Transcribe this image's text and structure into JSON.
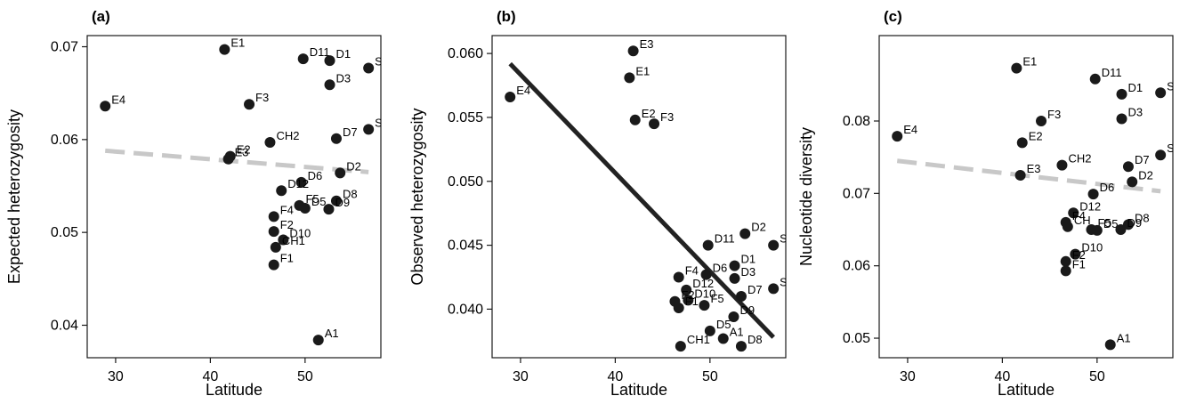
{
  "chart_data": [
    {
      "type": "scatter",
      "panel": "(a)",
      "xlabel": "Latitude",
      "ylabel": "Expected heterozygosity",
      "xlim": [
        27,
        58
      ],
      "ylim": [
        0.0365,
        0.0712
      ],
      "xticks": [
        30,
        40,
        50
      ],
      "yticks": [
        0.04,
        0.05,
        0.06,
        0.07
      ],
      "tick_format": {
        "x": 0,
        "y": 2
      },
      "points": [
        {
          "label": "E1",
          "x": 41.5,
          "y": 0.0697
        },
        {
          "label": "D11",
          "x": 49.8,
          "y": 0.0687
        },
        {
          "label": "D1",
          "x": 52.6,
          "y": 0.0685
        },
        {
          "label": "S",
          "x": 56.7,
          "y": 0.0677
        },
        {
          "label": "D3",
          "x": 52.6,
          "y": 0.0659
        },
        {
          "label": "F3",
          "x": 44.1,
          "y": 0.0638
        },
        {
          "label": "E4",
          "x": 28.9,
          "y": 0.0636
        },
        {
          "label": "D7",
          "x": 53.3,
          "y": 0.0601
        },
        {
          "label": "S",
          "x": 56.7,
          "y": 0.0611
        },
        {
          "label": "CH2",
          "x": 46.3,
          "y": 0.0597
        },
        {
          "label": "E2",
          "x": 42.1,
          "y": 0.0582
        },
        {
          "label": "E3",
          "x": 41.9,
          "y": 0.0579
        },
        {
          "label": "D2",
          "x": 53.7,
          "y": 0.0564
        },
        {
          "label": "D6",
          "x": 49.6,
          "y": 0.0554
        },
        {
          "label": "D12",
          "x": 47.5,
          "y": 0.0545
        },
        {
          "label": "F5",
          "x": 49.4,
          "y": 0.0529
        },
        {
          "label": "D5",
          "x": 50.0,
          "y": 0.0526
        },
        {
          "label": "D8",
          "x": 53.3,
          "y": 0.0534
        },
        {
          "label": "D9",
          "x": 52.5,
          "y": 0.0525
        },
        {
          "label": "F4",
          "x": 46.7,
          "y": 0.0517
        },
        {
          "label": "F2",
          "x": 46.7,
          "y": 0.0501
        },
        {
          "label": "D10",
          "x": 47.7,
          "y": 0.0492
        },
        {
          "label": "CH1",
          "x": 46.9,
          "y": 0.0484
        },
        {
          "label": "F1",
          "x": 46.7,
          "y": 0.0465
        },
        {
          "label": "A1",
          "x": 51.4,
          "y": 0.0384
        }
      ],
      "trend": {
        "style": "dashed",
        "color": "#c8c8c8",
        "x": [
          28.9,
          56.7
        ],
        "y": [
          0.0588,
          0.0565
        ]
      }
    },
    {
      "type": "scatter",
      "panel": "(b)",
      "xlabel": "Latitude",
      "ylabel": "Observed heterozygosity",
      "xlim": [
        27,
        58
      ],
      "ylim": [
        0.0362,
        0.0614
      ],
      "xticks": [
        30,
        40,
        50
      ],
      "yticks": [
        0.04,
        0.045,
        0.05,
        0.055,
        0.06
      ],
      "tick_format": {
        "x": 0,
        "y": 3
      },
      "points": [
        {
          "label": "E3",
          "x": 41.9,
          "y": 0.0602
        },
        {
          "label": "E1",
          "x": 41.5,
          "y": 0.0581
        },
        {
          "label": "E4",
          "x": 28.9,
          "y": 0.0566
        },
        {
          "label": "E2",
          "x": 42.1,
          "y": 0.0548
        },
        {
          "label": "F3",
          "x": 44.1,
          "y": 0.0545
        },
        {
          "label": "D11",
          "x": 49.8,
          "y": 0.045
        },
        {
          "label": "D2",
          "x": 53.7,
          "y": 0.0459
        },
        {
          "label": "S",
          "x": 56.7,
          "y": 0.045
        },
        {
          "label": "D1",
          "x": 52.6,
          "y": 0.0434
        },
        {
          "label": "D6",
          "x": 49.6,
          "y": 0.0427
        },
        {
          "label": "D3",
          "x": 52.6,
          "y": 0.0424
        },
        {
          "label": "F4",
          "x": 46.7,
          "y": 0.0425
        },
        {
          "label": "S",
          "x": 56.7,
          "y": 0.0416
        },
        {
          "label": "D12",
          "x": 47.5,
          "y": 0.0415
        },
        {
          "label": "D7",
          "x": 53.3,
          "y": 0.041
        },
        {
          "label": "D10",
          "x": 47.7,
          "y": 0.0407
        },
        {
          "label": "F2",
          "x": 46.3,
          "y": 0.0406
        },
        {
          "label": "F1",
          "x": 46.7,
          "y": 0.0401
        },
        {
          "label": "F5",
          "x": 49.4,
          "y": 0.0403
        },
        {
          "label": "D9",
          "x": 52.5,
          "y": 0.0394
        },
        {
          "label": "D5",
          "x": 50.0,
          "y": 0.0383
        },
        {
          "label": "A1",
          "x": 51.4,
          "y": 0.0377
        },
        {
          "label": "CH1",
          "x": 46.9,
          "y": 0.0371
        },
        {
          "label": "D8",
          "x": 53.3,
          "y": 0.0371
        }
      ],
      "trend": {
        "style": "solid",
        "color": "#222222",
        "x": [
          28.9,
          56.7
        ],
        "y": [
          0.0592,
          0.0378
        ]
      }
    },
    {
      "type": "scatter",
      "panel": "(c)",
      "xlabel": "Latitude",
      "ylabel": "Nucleotide diversity",
      "xlim": [
        27,
        58
      ],
      "ylim": [
        0.0473,
        0.0918
      ],
      "xticks": [
        30,
        40,
        50
      ],
      "yticks": [
        0.05,
        0.06,
        0.07,
        0.08
      ],
      "tick_format": {
        "x": 0,
        "y": 2
      },
      "points": [
        {
          "label": "E1",
          "x": 41.5,
          "y": 0.0873
        },
        {
          "label": "D11",
          "x": 49.8,
          "y": 0.0858
        },
        {
          "label": "D1",
          "x": 52.6,
          "y": 0.0837
        },
        {
          "label": "S",
          "x": 56.7,
          "y": 0.0839
        },
        {
          "label": "D3",
          "x": 52.6,
          "y": 0.0803
        },
        {
          "label": "F3",
          "x": 44.1,
          "y": 0.08
        },
        {
          "label": "E4",
          "x": 28.9,
          "y": 0.0779
        },
        {
          "label": "E2",
          "x": 42.1,
          "y": 0.077
        },
        {
          "label": "S",
          "x": 56.7,
          "y": 0.0753
        },
        {
          "label": "CH2",
          "x": 46.3,
          "y": 0.0739
        },
        {
          "label": "D7",
          "x": 53.3,
          "y": 0.0737
        },
        {
          "label": "E3",
          "x": 41.9,
          "y": 0.0725
        },
        {
          "label": "D2",
          "x": 53.7,
          "y": 0.0716
        },
        {
          "label": "D6",
          "x": 49.6,
          "y": 0.0699
        },
        {
          "label": "D12",
          "x": 47.5,
          "y": 0.0673
        },
        {
          "label": "F4",
          "x": 46.7,
          "y": 0.066
        },
        {
          "label": "CH",
          "x": 46.9,
          "y": 0.0654
        },
        {
          "label": "D8",
          "x": 53.3,
          "y": 0.0657
        },
        {
          "label": "F5",
          "x": 49.4,
          "y": 0.065
        },
        {
          "label": "D5",
          "x": 50.0,
          "y": 0.0649
        },
        {
          "label": "D9",
          "x": 52.5,
          "y": 0.065
        },
        {
          "label": "D10",
          "x": 47.7,
          "y": 0.0616
        },
        {
          "label": "F2",
          "x": 46.7,
          "y": 0.0606
        },
        {
          "label": "F1",
          "x": 46.7,
          "y": 0.0593
        },
        {
          "label": "A1",
          "x": 51.4,
          "y": 0.0491
        }
      ],
      "trend": {
        "style": "dashed",
        "color": "#c8c8c8",
        "x": [
          28.9,
          56.7
        ],
        "y": [
          0.0745,
          0.0703
        ]
      }
    }
  ]
}
